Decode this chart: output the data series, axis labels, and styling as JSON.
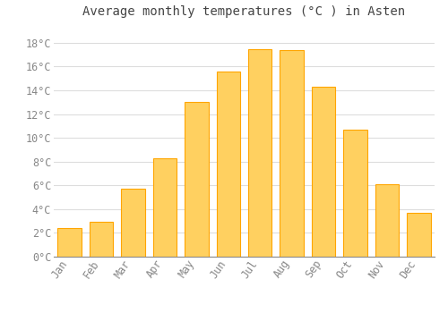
{
  "title": "Average monthly temperatures (°C ) in Asten",
  "months": [
    "Jan",
    "Feb",
    "Mar",
    "Apr",
    "May",
    "Jun",
    "Jul",
    "Aug",
    "Sep",
    "Oct",
    "Nov",
    "Dec"
  ],
  "values": [
    2.4,
    2.9,
    5.7,
    8.3,
    13.0,
    15.6,
    17.5,
    17.4,
    14.3,
    10.7,
    6.1,
    3.7
  ],
  "bar_color": "#FFA500",
  "bar_color_light": "#FFD060",
  "background_color": "#FFFFFF",
  "grid_color": "#DDDDDD",
  "tick_label_color": "#888888",
  "title_color": "#444444",
  "ylim": [
    0,
    19.5
  ],
  "yticks": [
    0,
    2,
    4,
    6,
    8,
    10,
    12,
    14,
    16,
    18
  ],
  "title_fontsize": 10,
  "tick_fontsize": 8.5
}
